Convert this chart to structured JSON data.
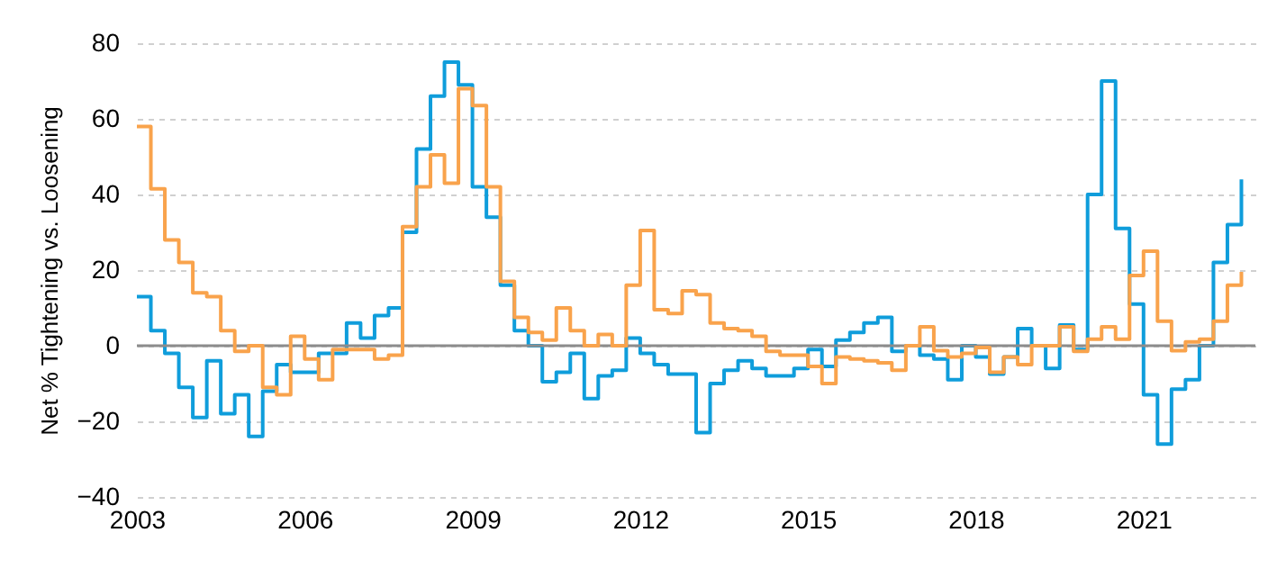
{
  "chart_data": {
    "type": "step",
    "ylabel": "Net % Tightening vs. Loosening",
    "x": [
      2003,
      2003.25,
      2003.5,
      2003.75,
      2004,
      2004.25,
      2004.5,
      2004.75,
      2005,
      2005.25,
      2005.5,
      2005.75,
      2006,
      2006.25,
      2006.5,
      2006.75,
      2007,
      2007.25,
      2007.5,
      2007.75,
      2008,
      2008.25,
      2008.5,
      2008.75,
      2009,
      2009.25,
      2009.5,
      2009.75,
      2010,
      2010.25,
      2010.5,
      2010.75,
      2011,
      2011.25,
      2011.5,
      2011.75,
      2012,
      2012.25,
      2012.5,
      2012.75,
      2013,
      2013.25,
      2013.5,
      2013.75,
      2014,
      2014.25,
      2014.5,
      2014.75,
      2015,
      2015.25,
      2015.5,
      2015.75,
      2016,
      2016.25,
      2016.5,
      2016.75,
      2017,
      2017.25,
      2017.5,
      2017.75,
      2018,
      2018.25,
      2018.5,
      2018.75,
      2019,
      2019.25,
      2019.5,
      2019.75,
      2020,
      2020.25,
      2020.5,
      2020.75,
      2021,
      2021.25,
      2021.5,
      2021.75,
      2022,
      2022.25,
      2022.5,
      2022.75
    ],
    "series": [
      {
        "color": "#0f9ddb",
        "values": [
          13,
          4,
          -2,
          -11,
          -19,
          -4,
          -18,
          -13,
          -24,
          -12,
          -5,
          -7,
          -7,
          -2,
          -2,
          6,
          2,
          8,
          10,
          30,
          52,
          66,
          75,
          69,
          42,
          34,
          16,
          4,
          0,
          -9.5,
          -7,
          -2,
          -14,
          -8,
          -6.5,
          2,
          -2,
          -5,
          -7.5,
          -7.5,
          -23,
          -10,
          -6.5,
          -4,
          -6,
          -8,
          -8,
          -6,
          -1,
          -5.5,
          1.5,
          3.5,
          6,
          7.5,
          -1.5,
          0,
          -2.5,
          -3.5,
          -9,
          0,
          -3,
          -7.5,
          -3,
          4.5,
          0,
          -6,
          5.5,
          -1,
          40,
          70,
          31,
          11,
          -13,
          -26,
          -11.5,
          -9,
          0,
          22,
          32,
          44
        ]
      },
      {
        "color": "#f9a34c",
        "values": [
          58,
          41.5,
          28,
          22,
          14,
          13,
          4,
          -1.5,
          0,
          -11,
          -13,
          2.5,
          -3.5,
          -9,
          -1,
          -1,
          -1,
          -3.5,
          -2.5,
          31.5,
          42,
          50.5,
          43,
          68,
          63.5,
          42,
          17,
          7.5,
          3.5,
          1.5,
          10,
          4,
          0,
          3,
          0,
          16,
          30.5,
          9.5,
          8.5,
          14.5,
          13.5,
          6,
          4.5,
          4,
          2.5,
          -1.5,
          -2.5,
          -2.5,
          -5.5,
          -10,
          -3,
          -3.5,
          -4,
          -4.5,
          -6.5,
          0,
          5,
          -1.3,
          -3,
          -2,
          -0.5,
          -7,
          -3,
          -5,
          0,
          0,
          5,
          -1.5,
          1.7,
          5,
          1.7,
          18.6,
          25,
          6.5,
          -1.3,
          1,
          1.7,
          6.5,
          16,
          19.5
        ]
      }
    ],
    "xlim": [
      2003,
      2023
    ],
    "xticks": [
      2003,
      2006,
      2009,
      2012,
      2015,
      2018,
      2021
    ],
    "ylim": [
      -40,
      80
    ],
    "yticks": [
      -40,
      -20,
      0,
      20,
      40,
      60,
      80
    ],
    "grid": "y",
    "ref_lines": [
      {
        "axis": "y",
        "value": 0,
        "color": "#8c8c8c"
      }
    ]
  }
}
